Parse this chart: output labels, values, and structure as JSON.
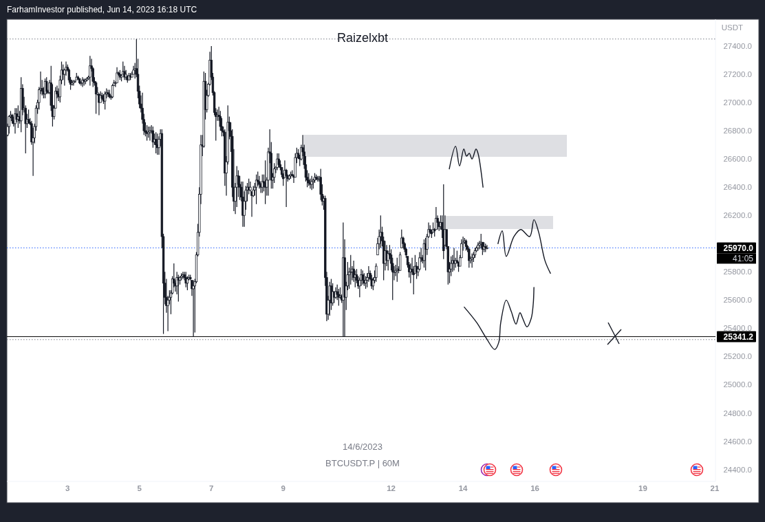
{
  "chart_data": {
    "type": "candlestick",
    "title": "Raizelxbt",
    "ylabel": "USDT",
    "color": "#131722",
    "annotations": [
      "FarhamInvestor published, Jun 14, 2023 16:18 UTC",
      "14/6/2023",
      "BTCUSDT.P | 60M",
      "41:05"
    ],
    "xlim": [
      "2023-06-01T07:30",
      "2023-06-21T00:30"
    ],
    "xticks": [
      {
        "value": "2023-06-03",
        "label": "3"
      },
      {
        "value": "2023-06-05",
        "label": "5"
      },
      {
        "value": "2023-06-07",
        "label": "7"
      },
      {
        "value": "2023-06-09",
        "label": "9"
      },
      {
        "value": "2023-06-12",
        "label": "12"
      },
      {
        "value": "2023-06-14",
        "label": "14"
      },
      {
        "value": "2023-06-16",
        "label": "16"
      },
      {
        "value": "2023-06-19",
        "label": "19"
      },
      {
        "value": "2023-06-21",
        "label": "21"
      }
    ],
    "ylim": [
      24315,
      27590
    ],
    "yticks": [
      {
        "value": 24400,
        "label": "24400.0"
      },
      {
        "value": 24600,
        "label": "24600.0"
      },
      {
        "value": 24800,
        "label": "24800.0"
      },
      {
        "value": 25000,
        "label": "25000.0"
      },
      {
        "value": 25200,
        "label": "25200.0"
      },
      {
        "value": 25400,
        "label": "25400.0"
      },
      {
        "value": 25600,
        "label": "25600.0"
      },
      {
        "value": 25800,
        "label": "25800.0"
      },
      {
        "value": 26200,
        "label": "26200.0"
      },
      {
        "value": 26400,
        "label": "26400.0"
      },
      {
        "value": 26600,
        "label": "26600.0"
      },
      {
        "value": 26800,
        "label": "26800.0"
      },
      {
        "value": 27000,
        "label": "27000.0"
      },
      {
        "value": 27200,
        "label": "27200.0"
      },
      {
        "value": 27400,
        "label": "27400.0"
      }
    ],
    "ref_lines": [
      {
        "axis": "y",
        "value": 25341.2,
        "label": "25341.2",
        "color": "#000000",
        "line_style": "solid"
      },
      {
        "axis": "y",
        "value": 25970,
        "label": "25970.0",
        "color": "#2962ff",
        "line_style": "dotted"
      },
      {
        "axis": "y",
        "value": 27450,
        "color": "#787b86",
        "line_style": "dotted"
      },
      {
        "axis": "y",
        "value": 25320,
        "color": "#787b86",
        "line_style": "dotted"
      }
    ],
    "series": [
      {
        "type": "line",
        "color": "#131722",
        "x": [
          "2023-06-13T14:50",
          "2023-06-13T19:00",
          "2023-06-13T21:40",
          "2023-06-14T00:30",
          "2023-06-14T02:20",
          "2023-06-14T04:10",
          "2023-06-14T06:00",
          "2023-06-14T08:40",
          "2023-06-14T10:00",
          "2023-06-14T13:20"
        ],
        "values": [
          26530,
          26690,
          26550,
          26670,
          26620,
          26640,
          26600,
          26670,
          26640,
          26400
        ]
      },
      {
        "type": "line",
        "color": "#131722",
        "x": [
          "2023-06-14T23:20",
          "2023-06-15T02:10",
          "2023-06-15T04:50",
          "2023-06-15T10:00",
          "2023-06-15T14:30",
          "2023-06-15T20:30",
          "2023-06-15T23:20",
          "2023-06-16T02:30",
          "2023-06-16T06:40",
          "2023-06-16T10:20"
        ],
        "values": [
          26000,
          26090,
          25910,
          26050,
          26100,
          26050,
          26170,
          26080,
          25880,
          25790
        ]
      },
      {
        "type": "line",
        "color": "#131722",
        "x": [
          "2023-06-14T00:50",
          "2023-06-14T09:10",
          "2023-06-14T15:30",
          "2023-06-14T21:10",
          "2023-06-14T23:50",
          "2023-06-15T01:10",
          "2023-06-15T04:50",
          "2023-06-15T08:10",
          "2023-06-15T11:20",
          "2023-06-15T14:00",
          "2023-06-15T15:50",
          "2023-06-15T18:40",
          "2023-06-15T21:30",
          "2023-06-15T22:50",
          "2023-06-15T23:20"
        ],
        "values": [
          25550,
          25440,
          25330,
          25250,
          25300,
          25440,
          25600,
          25520,
          25430,
          25510,
          25470,
          25410,
          25470,
          25570,
          25690
        ]
      }
    ],
    "x": [
      "2023-06-01T08:00",
      "2023-06-01T09:00",
      "2023-06-01T10:00",
      "2023-06-01T11:00",
      "2023-06-01T12:00",
      "2023-06-01T13:00",
      "2023-06-01T14:00",
      "2023-06-01T15:00",
      "2023-06-01T16:00",
      "2023-06-01T17:00",
      "2023-06-01T18:00",
      "2023-06-01T19:00",
      "2023-06-01T20:00",
      "2023-06-01T21:00",
      "2023-06-01T22:00",
      "2023-06-01T23:00",
      "2023-06-02T00:00",
      "2023-06-02T01:00",
      "2023-06-02T02:00",
      "2023-06-02T03:00",
      "2023-06-02T04:00",
      "2023-06-02T05:00",
      "2023-06-02T06:00",
      "2023-06-02T07:00",
      "2023-06-02T08:00",
      "2023-06-02T09:00",
      "2023-06-02T10:00",
      "2023-06-02T11:00",
      "2023-06-02T12:00",
      "2023-06-02T13:00",
      "2023-06-02T14:00",
      "2023-06-02T15:00",
      "2023-06-02T16:00",
      "2023-06-02T17:00",
      "2023-06-02T18:00",
      "2023-06-02T19:00",
      "2023-06-02T20:00",
      "2023-06-02T21:00",
      "2023-06-02T22:00",
      "2023-06-02T23:00",
      "2023-06-03T00:00",
      "2023-06-03T01:00",
      "2023-06-03T02:00",
      "2023-06-03T03:00",
      "2023-06-03T04:00",
      "2023-06-03T05:00",
      "2023-06-03T06:00",
      "2023-06-03T07:00",
      "2023-06-03T08:00",
      "2023-06-03T09:00",
      "2023-06-03T10:00",
      "2023-06-03T11:00",
      "2023-06-03T12:00",
      "2023-06-03T13:00",
      "2023-06-03T14:00",
      "2023-06-03T15:00",
      "2023-06-03T16:00",
      "2023-06-03T17:00",
      "2023-06-03T18:00",
      "2023-06-03T19:00",
      "2023-06-03T20:00",
      "2023-06-03T21:00",
      "2023-06-03T22:00",
      "2023-06-03T23:00",
      "2023-06-04T00:00",
      "2023-06-04T01:00",
      "2023-06-04T02:00",
      "2023-06-04T03:00",
      "2023-06-04T04:00",
      "2023-06-04T05:00",
      "2023-06-04T06:00",
      "2023-06-04T07:00",
      "2023-06-04T08:00",
      "2023-06-04T09:00",
      "2023-06-04T10:00",
      "2023-06-04T11:00",
      "2023-06-04T12:00",
      "2023-06-04T13:00",
      "2023-06-04T14:00",
      "2023-06-04T15:00",
      "2023-06-04T16:00",
      "2023-06-04T17:00",
      "2023-06-04T18:00",
      "2023-06-04T19:00",
      "2023-06-04T20:00",
      "2023-06-04T21:00",
      "2023-06-04T22:00",
      "2023-06-04T23:00",
      "2023-06-05T00:00",
      "2023-06-05T01:00",
      "2023-06-05T02:00",
      "2023-06-05T03:00",
      "2023-06-05T04:00",
      "2023-06-05T05:00",
      "2023-06-05T06:00",
      "2023-06-05T07:00",
      "2023-06-05T08:00",
      "2023-06-05T09:00",
      "2023-06-05T10:00",
      "2023-06-05T11:00",
      "2023-06-05T12:00",
      "2023-06-05T13:00",
      "2023-06-05T14:00",
      "2023-06-05T15:00",
      "2023-06-05T16:00",
      "2023-06-05T17:00",
      "2023-06-05T18:00",
      "2023-06-05T19:00",
      "2023-06-05T20:00",
      "2023-06-05T21:00",
      "2023-06-05T22:00",
      "2023-06-05T23:00",
      "2023-06-06T00:00",
      "2023-06-06T01:00",
      "2023-06-06T02:00",
      "2023-06-06T03:00",
      "2023-06-06T04:00",
      "2023-06-06T05:00",
      "2023-06-06T06:00",
      "2023-06-06T07:00",
      "2023-06-06T08:00",
      "2023-06-06T09:00",
      "2023-06-06T10:00",
      "2023-06-06T11:00",
      "2023-06-06T12:00",
      "2023-06-06T13:00",
      "2023-06-06T14:00",
      "2023-06-06T15:00",
      "2023-06-06T16:00",
      "2023-06-06T17:00",
      "2023-06-06T18:00",
      "2023-06-06T19:00",
      "2023-06-06T20:00",
      "2023-06-06T21:00",
      "2023-06-06T22:00",
      "2023-06-06T23:00",
      "2023-06-07T00:00",
      "2023-06-07T01:00",
      "2023-06-07T02:00",
      "2023-06-07T03:00",
      "2023-06-07T04:00",
      "2023-06-07T05:00",
      "2023-06-07T06:00",
      "2023-06-07T07:00",
      "2023-06-07T08:00",
      "2023-06-07T09:00",
      "2023-06-07T10:00",
      "2023-06-07T11:00",
      "2023-06-07T12:00",
      "2023-06-07T13:00",
      "2023-06-07T14:00",
      "2023-06-07T15:00",
      "2023-06-07T16:00",
      "2023-06-07T17:00",
      "2023-06-07T18:00",
      "2023-06-07T19:00",
      "2023-06-07T20:00",
      "2023-06-07T21:00",
      "2023-06-07T22:00",
      "2023-06-07T23:00",
      "2023-06-08T00:00",
      "2023-06-08T01:00",
      "2023-06-08T02:00",
      "2023-06-08T03:00",
      "2023-06-08T04:00",
      "2023-06-08T05:00",
      "2023-06-08T06:00",
      "2023-06-08T07:00",
      "2023-06-08T08:00",
      "2023-06-08T09:00",
      "2023-06-08T10:00",
      "2023-06-08T11:00",
      "2023-06-08T12:00",
      "2023-06-08T13:00",
      "2023-06-08T14:00",
      "2023-06-08T15:00",
      "2023-06-08T16:00",
      "2023-06-08T17:00",
      "2023-06-08T18:00",
      "2023-06-08T19:00",
      "2023-06-08T20:00",
      "2023-06-08T21:00",
      "2023-06-08T22:00",
      "2023-06-08T23:00",
      "2023-06-09T00:00",
      "2023-06-09T01:00",
      "2023-06-09T02:00",
      "2023-06-09T03:00",
      "2023-06-09T04:00",
      "2023-06-09T05:00",
      "2023-06-09T06:00",
      "2023-06-09T07:00",
      "2023-06-09T08:00",
      "2023-06-09T09:00",
      "2023-06-09T10:00",
      "2023-06-09T11:00",
      "2023-06-09T12:00",
      "2023-06-09T13:00",
      "2023-06-09T14:00",
      "2023-06-09T15:00",
      "2023-06-09T16:00",
      "2023-06-09T17:00",
      "2023-06-09T18:00",
      "2023-06-09T19:00",
      "2023-06-09T20:00",
      "2023-06-09T21:00",
      "2023-06-09T22:00",
      "2023-06-09T23:00",
      "2023-06-10T00:00",
      "2023-06-10T01:00",
      "2023-06-10T02:00",
      "2023-06-10T03:00",
      "2023-06-10T04:00",
      "2023-06-10T05:00",
      "2023-06-10T06:00",
      "2023-06-10T07:00",
      "2023-06-10T08:00",
      "2023-06-10T09:00",
      "2023-06-10T10:00",
      "2023-06-10T11:00",
      "2023-06-10T12:00",
      "2023-06-10T13:00",
      "2023-06-10T14:00",
      "2023-06-10T15:00",
      "2023-06-10T16:00",
      "2023-06-10T17:00",
      "2023-06-10T18:00",
      "2023-06-10T19:00",
      "2023-06-10T20:00",
      "2023-06-10T21:00",
      "2023-06-10T22:00",
      "2023-06-10T23:00",
      "2023-06-11T00:00",
      "2023-06-11T01:00",
      "2023-06-11T02:00",
      "2023-06-11T03:00",
      "2023-06-11T04:00",
      "2023-06-11T05:00",
      "2023-06-11T06:00",
      "2023-06-11T07:00",
      "2023-06-11T08:00",
      "2023-06-11T09:00",
      "2023-06-11T10:00",
      "2023-06-11T11:00",
      "2023-06-11T12:00",
      "2023-06-11T13:00",
      "2023-06-11T14:00",
      "2023-06-11T15:00",
      "2023-06-11T16:00",
      "2023-06-11T17:00",
      "2023-06-11T18:00",
      "2023-06-11T19:00",
      "2023-06-11T20:00",
      "2023-06-11T21:00",
      "2023-06-11T22:00",
      "2023-06-11T23:00",
      "2023-06-12T00:00",
      "2023-06-12T01:00",
      "2023-06-12T02:00",
      "2023-06-12T03:00",
      "2023-06-12T04:00",
      "2023-06-12T05:00",
      "2023-06-12T06:00",
      "2023-06-12T07:00",
      "2023-06-12T08:00",
      "2023-06-12T09:00",
      "2023-06-12T10:00",
      "2023-06-12T11:00",
      "2023-06-12T12:00",
      "2023-06-12T13:00",
      "2023-06-12T14:00",
      "2023-06-12T15:00",
      "2023-06-12T16:00",
      "2023-06-12T17:00",
      "2023-06-12T18:00",
      "2023-06-12T19:00",
      "2023-06-12T20:00",
      "2023-06-12T21:00",
      "2023-06-12T22:00",
      "2023-06-12T23:00",
      "2023-06-13T00:00",
      "2023-06-13T01:00",
      "2023-06-13T02:00",
      "2023-06-13T03:00",
      "2023-06-13T04:00",
      "2023-06-13T05:00",
      "2023-06-13T06:00",
      "2023-06-13T07:00",
      "2023-06-13T08:00",
      "2023-06-13T09:00",
      "2023-06-13T10:00",
      "2023-06-13T11:00",
      "2023-06-13T12:00",
      "2023-06-13T13:00",
      "2023-06-13T14:00",
      "2023-06-13T15:00",
      "2023-06-13T16:00",
      "2023-06-13T17:00",
      "2023-06-13T18:00",
      "2023-06-13T19:00",
      "2023-06-13T20:00",
      "2023-06-13T21:00",
      "2023-06-13T22:00",
      "2023-06-13T23:00",
      "2023-06-14T00:00",
      "2023-06-14T01:00",
      "2023-06-14T02:00",
      "2023-06-14T03:00",
      "2023-06-14T04:00",
      "2023-06-14T05:00",
      "2023-06-14T06:00",
      "2023-06-14T07:00",
      "2023-06-14T08:00",
      "2023-06-14T09:00",
      "2023-06-14T10:00",
      "2023-06-14T11:00",
      "2023-06-14T12:00",
      "2023-06-14T13:00",
      "2023-06-14T14:00",
      "2023-06-14T15:00",
      "2023-06-14T16:00"
    ],
    "ohlc": [
      [
        26770,
        26850,
        26760,
        26830
      ],
      [
        26830,
        26910,
        26780,
        26900
      ],
      [
        26900,
        26940,
        26890,
        26910
      ],
      [
        26910,
        26920,
        26850,
        26870
      ],
      [
        26870,
        26900,
        26830,
        26850
      ],
      [
        26850,
        26960,
        26780,
        26920
      ],
      [
        26920,
        26960,
        26860,
        26880
      ],
      [
        26880,
        26980,
        26820,
        26900
      ],
      [
        26900,
        26940,
        26850,
        26870
      ],
      [
        26870,
        27180,
        26790,
        27100
      ],
      [
        27100,
        27130,
        26910,
        26950
      ],
      [
        26950,
        27040,
        26930,
        26960
      ],
      [
        26960,
        26980,
        26640,
        26850
      ],
      [
        26850,
        26920,
        26820,
        26880
      ],
      [
        26880,
        26950,
        26850,
        26860
      ],
      [
        26860,
        26890,
        26840,
        26850
      ],
      [
        26850,
        26870,
        26700,
        26720
      ],
      [
        26720,
        26820,
        26480,
        26750
      ],
      [
        26750,
        26850,
        26710,
        26830
      ],
      [
        26830,
        26980,
        26800,
        26960
      ],
      [
        26960,
        27020,
        26920,
        27000
      ],
      [
        27000,
        27110,
        26950,
        27090
      ],
      [
        27090,
        27220,
        27060,
        27100
      ],
      [
        27100,
        27160,
        27050,
        27080
      ],
      [
        27080,
        27110,
        27030,
        27060
      ],
      [
        27060,
        27170,
        27030,
        27150
      ],
      [
        27150,
        27180,
        27060,
        27080
      ],
      [
        27080,
        27090,
        27060,
        27070
      ],
      [
        27070,
        27160,
        27060,
        27140
      ],
      [
        27140,
        27260,
        26940,
        26980
      ],
      [
        26980,
        27130,
        26830,
        26900
      ],
      [
        26900,
        26980,
        26880,
        26960
      ],
      [
        26960,
        27110,
        26960,
        27080
      ],
      [
        27080,
        27120,
        27030,
        27060
      ],
      [
        27060,
        27100,
        27010,
        27040
      ],
      [
        27040,
        27190,
        27000,
        27160
      ],
      [
        27160,
        27290,
        27130,
        27230
      ],
      [
        27230,
        27270,
        27160,
        27200
      ],
      [
        27200,
        27240,
        27120,
        27230
      ],
      [
        27230,
        27290,
        27190,
        27250
      ],
      [
        27250,
        27270,
        27220,
        27230
      ],
      [
        27230,
        27240,
        27140,
        27160
      ],
      [
        27160,
        27180,
        27090,
        27130
      ],
      [
        27130,
        27160,
        27120,
        27140
      ],
      [
        27140,
        27160,
        27120,
        27150
      ],
      [
        27150,
        27160,
        27140,
        27150
      ],
      [
        27160,
        27210,
        27160,
        27180
      ],
      [
        27180,
        27190,
        27160,
        27170
      ],
      [
        27170,
        27170,
        27130,
        27140
      ],
      [
        27140,
        27150,
        27120,
        27140
      ],
      [
        27140,
        27180,
        27110,
        27160
      ],
      [
        27160,
        27170,
        27120,
        27150
      ],
      [
        27150,
        27170,
        27130,
        27160
      ],
      [
        27160,
        27180,
        27150,
        27170
      ],
      [
        27170,
        27190,
        27160,
        27180
      ],
      [
        27180,
        27330,
        27120,
        27260
      ],
      [
        27260,
        27310,
        27220,
        27240
      ],
      [
        27240,
        27250,
        27110,
        27150
      ],
      [
        27150,
        27180,
        27120,
        27140
      ],
      [
        27140,
        27150,
        26920,
        27060
      ],
      [
        27060,
        27110,
        27050,
        27070
      ],
      [
        27060,
        27060,
        26910,
        27000
      ],
      [
        27000,
        27080,
        27000,
        27050
      ],
      [
        27050,
        27070,
        27020,
        27030
      ],
      [
        27030,
        27060,
        26990,
        27010
      ],
      [
        27010,
        27080,
        26950,
        27060
      ],
      [
        27060,
        27100,
        27030,
        27070
      ],
      [
        27070,
        27090,
        27040,
        27060
      ],
      [
        27060,
        27090,
        27030,
        27040
      ],
      [
        27040,
        27050,
        27020,
        27040
      ],
      [
        27040,
        27130,
        27030,
        27120
      ],
      [
        27120,
        27160,
        27120,
        27140
      ],
      [
        27140,
        27150,
        27110,
        27140
      ],
      [
        27140,
        27250,
        27140,
        27210
      ],
      [
        27210,
        27220,
        27190,
        27200
      ],
      [
        27200,
        27230,
        27160,
        27180
      ],
      [
        27180,
        27200,
        27150,
        27190
      ],
      [
        27200,
        27290,
        27200,
        27220
      ],
      [
        27220,
        27260,
        27160,
        27180
      ],
      [
        27180,
        27230,
        27160,
        27200
      ],
      [
        27190,
        27190,
        27140,
        27160
      ],
      [
        27160,
        27210,
        27160,
        27190
      ],
      [
        27190,
        27210,
        27160,
        27180
      ],
      [
        27180,
        27220,
        27180,
        27200
      ],
      [
        27200,
        27260,
        27200,
        27230
      ],
      [
        27230,
        27280,
        27170,
        27240
      ],
      [
        27240,
        27450,
        27180,
        27200
      ],
      [
        27200,
        27310,
        27030,
        27080
      ],
      [
        27080,
        27120,
        26960,
        26990
      ],
      [
        26990,
        27050,
        26930,
        26960
      ],
      [
        26960,
        27070,
        26850,
        26880
      ],
      [
        26880,
        26920,
        26770,
        26800
      ],
      [
        26800,
        26860,
        26760,
        26790
      ],
      [
        26790,
        26840,
        26730,
        26780
      ],
      [
        26780,
        26830,
        26750,
        26790
      ],
      [
        26790,
        26830,
        26730,
        26800
      ],
      [
        26800,
        26840,
        26780,
        26800
      ],
      [
        26800,
        26830,
        26680,
        26720
      ],
      [
        26720,
        26780,
        26700,
        26740
      ],
      [
        26740,
        26790,
        26640,
        26700
      ],
      [
        26700,
        26780,
        26630,
        26680
      ],
      [
        26680,
        26760,
        26630,
        26740
      ],
      [
        26740,
        26810,
        26690,
        26780
      ],
      [
        26780,
        26810,
        25970,
        26050
      ],
      [
        26050,
        26070,
        25360,
        25720
      ],
      [
        25720,
        25800,
        25570,
        25620
      ],
      [
        25620,
        25750,
        25510,
        25560
      ],
      [
        25560,
        25630,
        25380,
        25600
      ],
      [
        25600,
        25670,
        25570,
        25620
      ],
      [
        25620,
        25670,
        25500,
        25650
      ],
      [
        25650,
        25770,
        25640,
        25750
      ],
      [
        25750,
        25860,
        25690,
        25720
      ],
      [
        25720,
        25740,
        25660,
        25700
      ],
      [
        25700,
        25800,
        25640,
        25760
      ],
      [
        25760,
        25780,
        25590,
        25740
      ],
      [
        25740,
        25770,
        25710,
        25760
      ],
      [
        25760,
        25790,
        25740,
        25770
      ],
      [
        25770,
        25800,
        25750,
        25780
      ],
      [
        25780,
        25800,
        25740,
        25760
      ],
      [
        25760,
        25800,
        25690,
        25720
      ],
      [
        25720,
        25770,
        25670,
        25750
      ],
      [
        25750,
        25780,
        25740,
        25760
      ],
      [
        25760,
        25780,
        25740,
        25750
      ],
      [
        25740,
        25740,
        25630,
        25680
      ],
      [
        25680,
        25740,
        25340,
        25700
      ],
      [
        25700,
        25750,
        25370,
        25730
      ],
      [
        25730,
        25940,
        25720,
        25920
      ],
      [
        25920,
        26140,
        25910,
        26080
      ],
      [
        26080,
        26400,
        26050,
        26350
      ],
      [
        26350,
        26770,
        26280,
        26700
      ],
      [
        26700,
        26770,
        26620,
        26690
      ],
      [
        26690,
        27220,
        26680,
        27150
      ],
      [
        27150,
        27210,
        26880,
        26950
      ],
      [
        26950,
        27090,
        26930,
        27050
      ],
      [
        27050,
        27140,
        27040,
        27130
      ],
      [
        27130,
        27360,
        27120,
        27300
      ],
      [
        27300,
        27400,
        27160,
        27180
      ],
      [
        27180,
        27210,
        27050,
        27070
      ],
      [
        27070,
        27080,
        26910,
        26930
      ],
      [
        26930,
        26960,
        26730,
        26900
      ],
      [
        26900,
        26950,
        26870,
        26910
      ],
      [
        26910,
        26970,
        26870,
        26900
      ],
      [
        26900,
        26940,
        26800,
        26830
      ],
      [
        26830,
        26890,
        26760,
        26800
      ],
      [
        26800,
        26830,
        26760,
        26790
      ],
      [
        26790,
        26810,
        26410,
        26500
      ],
      [
        26500,
        26620,
        26340,
        26580
      ],
      [
        26580,
        26980,
        26560,
        26860
      ],
      [
        26860,
        26900,
        26740,
        26800
      ],
      [
        26800,
        26860,
        26650,
        26760
      ],
      [
        26760,
        26810,
        26330,
        26400
      ],
      [
        26400,
        26670,
        26230,
        26300
      ],
      [
        26300,
        26430,
        26210,
        26400
      ],
      [
        26400,
        26550,
        26260,
        26480
      ],
      [
        26480,
        26520,
        26330,
        26420
      ],
      [
        26420,
        26480,
        26310,
        26400
      ],
      [
        26400,
        26440,
        26300,
        26330
      ],
      [
        26330,
        26440,
        26120,
        26200
      ],
      [
        26200,
        26370,
        26120,
        26300
      ],
      [
        26300,
        26410,
        26240,
        26380
      ],
      [
        26380,
        26430,
        26300,
        26400
      ],
      [
        26400,
        26460,
        26350,
        26380
      ],
      [
        26380,
        26440,
        26370,
        26400
      ],
      [
        26370,
        26370,
        26190,
        26340
      ],
      [
        26340,
        26410,
        26330,
        26380
      ],
      [
        26380,
        26430,
        26340,
        26400
      ],
      [
        26400,
        26490,
        26280,
        26450
      ],
      [
        26450,
        26510,
        26410,
        26440
      ],
      [
        26440,
        26480,
        26390,
        26420
      ],
      [
        26420,
        26430,
        26360,
        26400
      ],
      [
        26400,
        26490,
        26360,
        26440
      ],
      [
        26440,
        26490,
        26370,
        26430
      ],
      [
        26430,
        26590,
        26280,
        26400
      ],
      [
        26400,
        26470,
        26340,
        26450
      ],
      [
        26450,
        26680,
        26340,
        26650
      ],
      [
        26650,
        26810,
        26570,
        26640
      ],
      [
        26640,
        26720,
        26390,
        26450
      ],
      [
        26450,
        26500,
        26390,
        26470
      ],
      [
        26470,
        26570,
        26430,
        26530
      ],
      [
        26530,
        26550,
        26500,
        26540
      ],
      [
        26540,
        26640,
        26520,
        26600
      ],
      [
        26600,
        26640,
        26540,
        26560
      ],
      [
        26560,
        26590,
        26520,
        26540
      ],
      [
        26540,
        26540,
        26470,
        26490
      ],
      [
        26490,
        26500,
        26410,
        26460
      ],
      [
        26470,
        26590,
        26470,
        26520
      ],
      [
        26520,
        26530,
        26260,
        26480
      ],
      [
        26480,
        26490,
        26440,
        26460
      ],
      [
        26460,
        26490,
        26450,
        26480
      ],
      [
        26480,
        26510,
        26460,
        26490
      ],
      [
        26490,
        26520,
        26480,
        26480
      ],
      [
        26480,
        26490,
        26430,
        26470
      ],
      [
        26470,
        26640,
        26470,
        26610
      ],
      [
        26610,
        26680,
        26570,
        26640
      ],
      [
        26640,
        26670,
        26600,
        26610
      ],
      [
        26610,
        26630,
        26550,
        26600
      ],
      [
        26600,
        26700,
        26590,
        26680
      ],
      [
        26680,
        26770,
        26620,
        26650
      ],
      [
        26650,
        26700,
        26530,
        26560
      ],
      [
        26560,
        26620,
        26440,
        26470
      ],
      [
        26470,
        26520,
        26400,
        26450
      ],
      [
        26450,
        26500,
        26410,
        26430
      ],
      [
        26430,
        26460,
        26390,
        26420
      ],
      [
        26420,
        26480,
        26380,
        26440
      ],
      [
        26440,
        26460,
        26390,
        26450
      ],
      [
        26450,
        26500,
        26430,
        26470
      ],
      [
        26470,
        26490,
        26450,
        26460
      ],
      [
        26460,
        26480,
        26440,
        26460
      ],
      [
        26460,
        26480,
        26440,
        26470
      ],
      [
        26470,
        26530,
        26310,
        26350
      ],
      [
        26350,
        26420,
        26270,
        26300
      ],
      [
        26300,
        26340,
        26240,
        26320
      ],
      [
        26320,
        26340,
        25700,
        25760
      ],
      [
        25760,
        25800,
        25450,
        25500
      ],
      [
        25500,
        25630,
        25460,
        25600
      ],
      [
        25600,
        25730,
        25490,
        25700
      ],
      [
        25700,
        25750,
        25530,
        25580
      ],
      [
        25580,
        25720,
        25560,
        25660
      ],
      [
        25660,
        25660,
        25580,
        25620
      ],
      [
        25620,
        25690,
        25610,
        25660
      ],
      [
        25660,
        25710,
        25600,
        25640
      ],
      [
        25640,
        25680,
        25560,
        25620
      ],
      [
        25620,
        25690,
        25610,
        25630
      ],
      [
        25630,
        25640,
        25580,
        25600
      ],
      [
        25600,
        26150,
        25340,
        25900
      ],
      [
        25900,
        26030,
        25340,
        25620
      ],
      [
        25620,
        25730,
        25530,
        25700
      ],
      [
        25700,
        25870,
        25670,
        25780
      ],
      [
        25780,
        25830,
        25680,
        25800
      ],
      [
        25800,
        25920,
        25710,
        25800
      ],
      [
        25800,
        25840,
        25740,
        25820
      ],
      [
        25820,
        25880,
        25730,
        25760
      ],
      [
        25760,
        25810,
        25690,
        25780
      ],
      [
        25780,
        25820,
        25720,
        25740
      ],
      [
        25740,
        25770,
        25680,
        25700
      ],
      [
        25700,
        25760,
        25620,
        25740
      ],
      [
        25740,
        25820,
        25700,
        25780
      ],
      [
        25780,
        25810,
        25710,
        25740
      ],
      [
        25740,
        25790,
        25700,
        25720
      ],
      [
        25720,
        25770,
        25680,
        25740
      ],
      [
        25740,
        25790,
        25690,
        25760
      ],
      [
        25760,
        25840,
        25730,
        25790
      ],
      [
        25790,
        25810,
        25740,
        25750
      ],
      [
        25750,
        25780,
        25680,
        25700
      ],
      [
        25700,
        25760,
        25670,
        25740
      ],
      [
        25740,
        25810,
        25720,
        25760
      ],
      [
        25760,
        25860,
        25730,
        25840
      ],
      [
        25920,
        26040,
        25920,
        26000
      ],
      [
        26000,
        26100,
        25960,
        26050
      ],
      [
        26050,
        26200,
        25970,
        26080
      ],
      [
        26080,
        26120,
        25980,
        26020
      ],
      [
        26020,
        26050,
        25740,
        25860
      ],
      [
        25860,
        26020,
        25810,
        25950
      ],
      [
        25950,
        25990,
        25840,
        25880
      ],
      [
        25880,
        25950,
        25810,
        25930
      ],
      [
        25930,
        25990,
        25890,
        25920
      ],
      [
        25920,
        25960,
        25810,
        25860
      ],
      [
        25860,
        25900,
        25600,
        25800
      ],
      [
        25800,
        25840,
        25740,
        25800
      ],
      [
        25800,
        25850,
        25770,
        25810
      ],
      [
        25810,
        25900,
        25730,
        25820
      ],
      [
        25820,
        25840,
        25790,
        25810
      ],
      [
        25810,
        25940,
        25810,
        25920
      ],
      [
        25970,
        26100,
        25970,
        26040
      ],
      [
        26040,
        26050,
        25970,
        26000
      ],
      [
        26000,
        26010,
        25940,
        25960
      ],
      [
        25960,
        25970,
        25900,
        25920
      ],
      [
        25910,
        25910,
        25830,
        25850
      ],
      [
        25850,
        25870,
        25760,
        25800
      ],
      [
        25800,
        25860,
        25720,
        25820
      ],
      [
        25820,
        25900,
        25780,
        25800
      ],
      [
        25800,
        25840,
        25640,
        25780
      ],
      [
        25790,
        25920,
        25790,
        25840
      ],
      [
        25840,
        25870,
        25750,
        25800
      ],
      [
        25800,
        25840,
        25770,
        25820
      ],
      [
        25820,
        25940,
        25810,
        25900
      ],
      [
        25900,
        25970,
        25870,
        25900
      ],
      [
        25900,
        25920,
        25860,
        25880
      ],
      [
        25880,
        26030,
        25830,
        26000
      ],
      [
        26000,
        26040,
        25810,
        25960
      ],
      [
        25960,
        26070,
        25920,
        26050
      ],
      [
        26050,
        26150,
        26040,
        26100
      ],
      [
        26100,
        26130,
        26070,
        26080
      ],
      [
        26080,
        26100,
        26040,
        26070
      ],
      [
        26080,
        26150,
        26080,
        26100
      ],
      [
        26100,
        26110,
        26050,
        26090
      ],
      [
        26100,
        26260,
        26100,
        26180
      ],
      [
        26180,
        26200,
        26100,
        26150
      ],
      [
        26150,
        26160,
        26090,
        26120
      ],
      [
        26120,
        26200,
        26100,
        26150
      ],
      [
        26150,
        26200,
        26040,
        26100
      ],
      [
        26100,
        26420,
        25890,
        25950
      ],
      [
        25990,
        26200,
        25990,
        26100
      ],
      [
        26100,
        26100,
        25960,
        25980
      ],
      [
        25980,
        25980,
        25710,
        25800
      ],
      [
        25800,
        25870,
        25720,
        25820
      ],
      [
        25820,
        25910,
        25770,
        25860
      ],
      [
        25860,
        25920,
        25800,
        25880
      ],
      [
        25880,
        25970,
        25810,
        25860
      ],
      [
        25860,
        25900,
        25830,
        25880
      ],
      [
        25880,
        25950,
        25860,
        25870
      ],
      [
        25870,
        25870,
        25800,
        25840
      ],
      [
        25840,
        25920,
        25840,
        25900
      ],
      [
        25900,
        26030,
        25900,
        26000
      ],
      [
        26000,
        26050,
        25950,
        26010
      ],
      [
        26010,
        26040,
        26000,
        26020
      ],
      [
        26020,
        26030,
        25950,
        25980
      ],
      [
        25980,
        25990,
        25940,
        25960
      ],
      [
        25960,
        25970,
        25830,
        25880
      ],
      [
        25880,
        25910,
        25860,
        25890
      ],
      [
        25890,
        25930,
        25830,
        25900
      ],
      [
        25900,
        25940,
        25870,
        25920
      ],
      [
        25920,
        25970,
        25900,
        25950
      ],
      [
        25950,
        25980,
        25940,
        25970
      ],
      [
        25970,
        26010,
        25950,
        25990
      ],
      [
        25990,
        26020,
        25960,
        26000
      ],
      [
        26000,
        26070,
        25970,
        26010
      ],
      [
        26010,
        26010,
        25920,
        25960
      ],
      [
        25960,
        26010,
        25940,
        25980
      ],
      [
        25980,
        26000,
        25940,
        25970
      ],
      [
        25970,
        25990,
        25960,
        25970
      ]
    ]
  }
}
